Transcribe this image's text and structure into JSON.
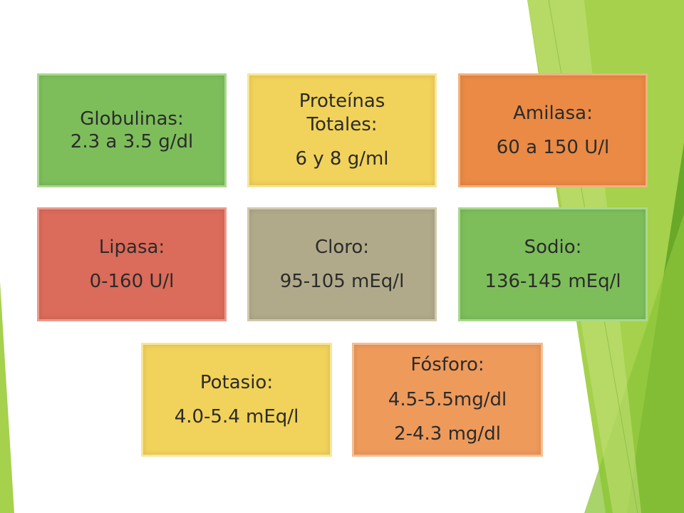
{
  "colors": {
    "green": "#7dbe5b",
    "yellow": "#f1d25a",
    "orange": "#ea8a44",
    "red": "#db6b5a",
    "tan": "#b1aa8a",
    "peach": "#ee9a5b",
    "decor_green_light": "#a5d14c",
    "decor_green_dark": "#6aa82a"
  },
  "cards": {
    "globulinas": {
      "title": "Globulinas:",
      "value": "2.3 a 3.5 g/dl"
    },
    "proteinas": {
      "title_1": "Proteínas",
      "title_2": "Totales:",
      "value": "6 y 8 g/ml"
    },
    "amilasa": {
      "title": "Amilasa:",
      "value": "60 a 150 U/l"
    },
    "lipasa": {
      "title": "Lipasa:",
      "value": "0-160 U/l"
    },
    "cloro": {
      "title": "Cloro:",
      "value": "95-105 mEq/l"
    },
    "sodio": {
      "title": "Sodio:",
      "value": "136-145 mEq/l"
    },
    "potasio": {
      "title": "Potasio:",
      "value": "4.0-5.4 mEq/l"
    },
    "fosforo": {
      "title": "Fósforo:",
      "value_1": "4.5-5.5mg/dl",
      "value_2": "2-4.3 mg/dl"
    }
  }
}
